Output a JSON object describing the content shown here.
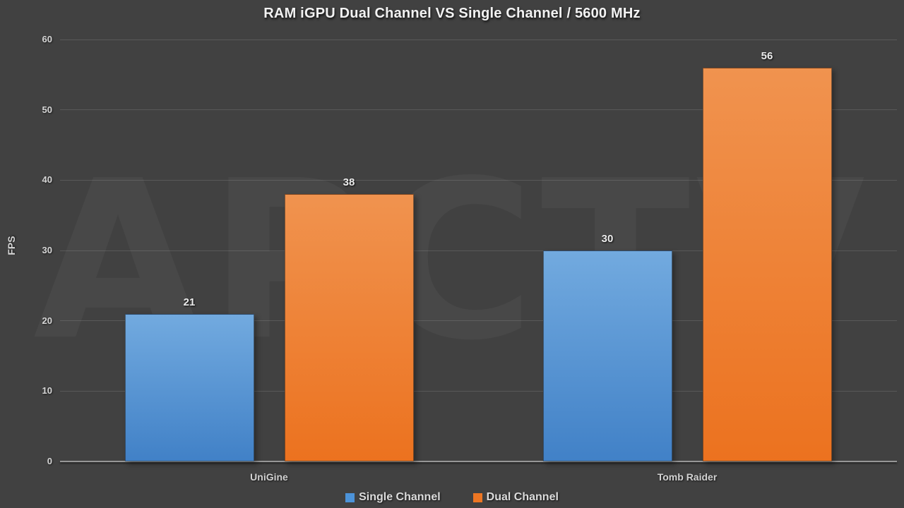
{
  "chart_data": {
    "type": "bar",
    "title": "RAM iGPU Dual Channel VS Single Channel / 5600 MHz",
    "ylabel": "FPS",
    "categories": [
      "UniGine",
      "Tomb Raider"
    ],
    "series": [
      {
        "name": "Single Channel",
        "values": [
          21,
          30
        ],
        "color": "#4c93d9",
        "gradient_top": "#72aadf",
        "gradient_bottom": "#4181c7"
      },
      {
        "name": "Dual Channel",
        "values": [
          38,
          56
        ],
        "color": "#ed7623",
        "gradient_top": "#f0934f",
        "gradient_bottom": "#ec721f"
      }
    ],
    "ylim": [
      0,
      60
    ],
    "yticks": [
      0,
      10,
      20,
      30,
      40,
      50,
      60
    ],
    "grid": true,
    "legend_position": "bottom",
    "background_color": "#414141",
    "watermark": "APCTV"
  }
}
